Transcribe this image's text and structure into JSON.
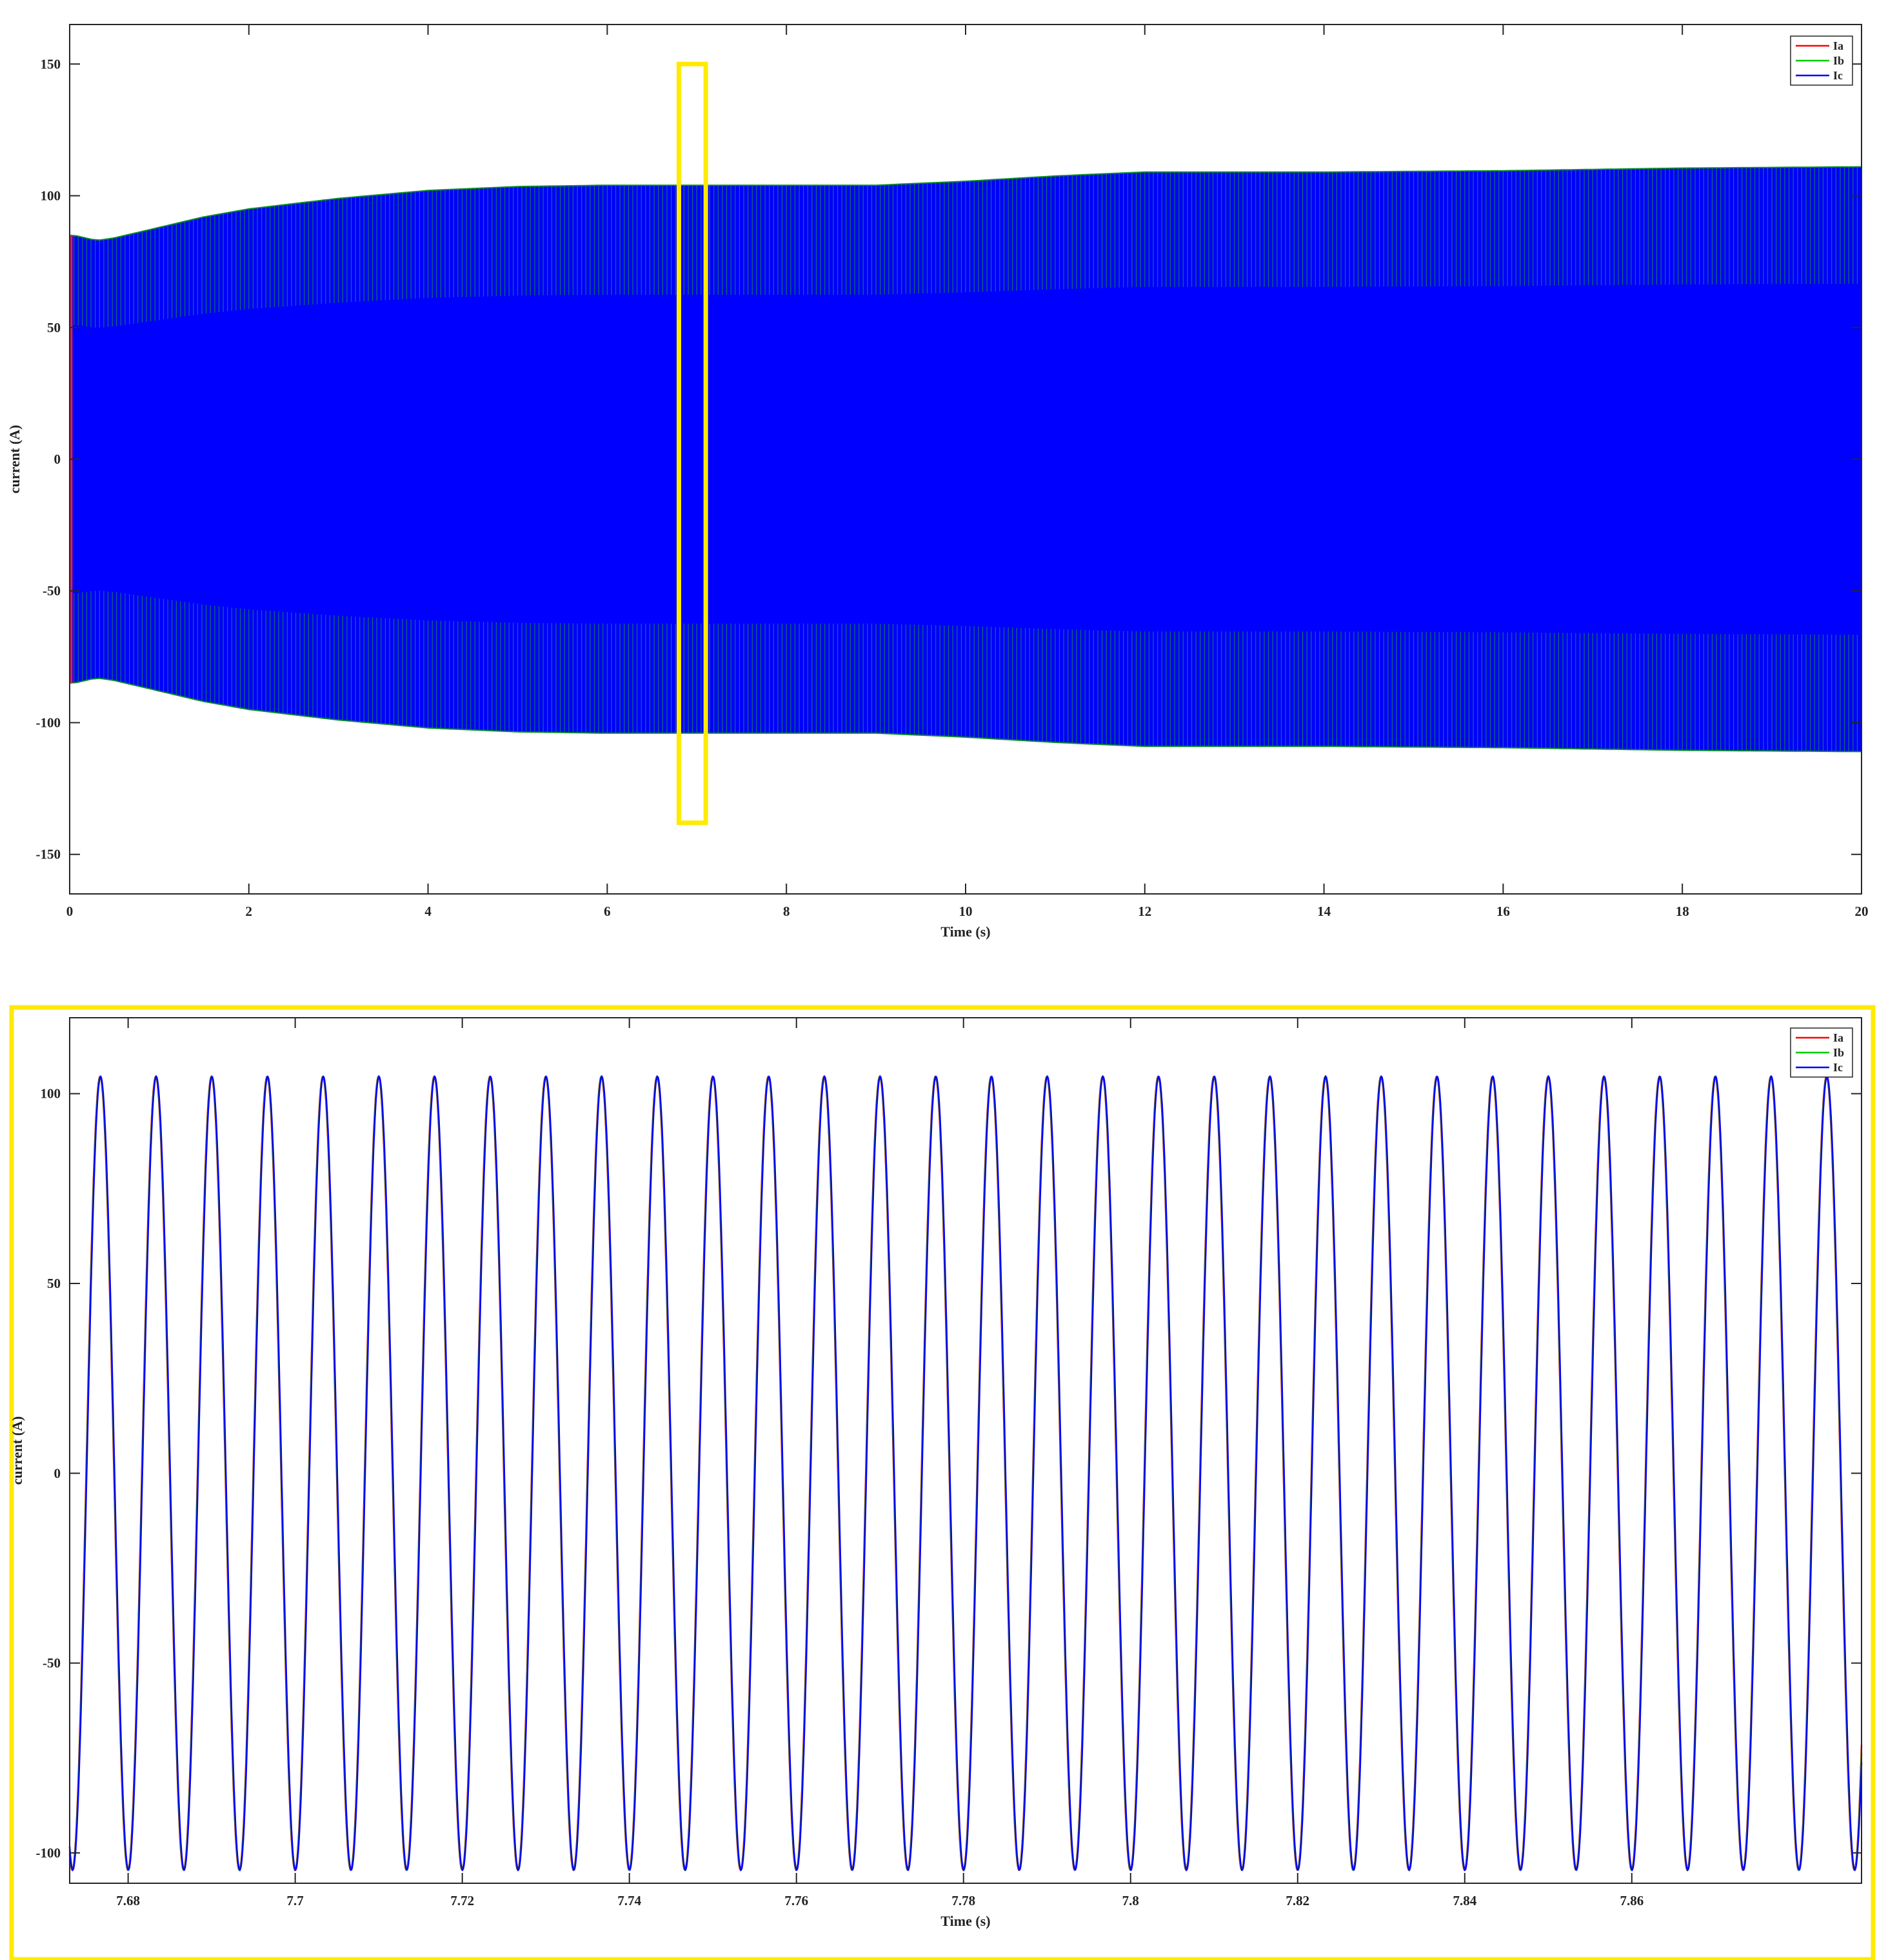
{
  "chart_data": [
    {
      "type": "line",
      "title": "",
      "xlabel": "Time (s)",
      "ylabel": "current (A)",
      "xlim": [
        0,
        20
      ],
      "ylim": [
        -165,
        165
      ],
      "xticks": [
        0,
        2,
        4,
        6,
        8,
        10,
        12,
        14,
        16,
        18,
        20
      ],
      "yticks": [
        -150,
        -100,
        -50,
        0,
        50,
        100,
        150
      ],
      "xtick_labels": [
        "0",
        "2",
        "4",
        "6",
        "8",
        "10",
        "12",
        "14",
        "16",
        "18",
        "20"
      ],
      "ytick_labels": [
        "-150",
        "-100",
        "-50",
        "0",
        "50",
        "100",
        "150"
      ],
      "grid": false,
      "legend_position": "top-right",
      "series": [
        {
          "name": "Ia",
          "color": "#ff0000"
        },
        {
          "name": "Ib",
          "color": "#00cc00"
        },
        {
          "name": "Ic",
          "color": "#0000ff"
        }
      ],
      "envelope": {
        "t": [
          0,
          0.05,
          0.3,
          0.5,
          1,
          1.5,
          2,
          3,
          4,
          5,
          6,
          7,
          8,
          9,
          10,
          11,
          12,
          13,
          14,
          16,
          18,
          20
        ],
        "amplitude": [
          85,
          85,
          83,
          84,
          88,
          92,
          95,
          99,
          102,
          103.5,
          104,
          104,
          104,
          104,
          105.5,
          107.5,
          109,
          109,
          109,
          109.5,
          110.5,
          111
        ]
      },
      "highlight_box": {
        "x": [
          6.8,
          7.1
        ],
        "y": [
          -138,
          150
        ],
        "color": "#ffea00"
      }
    },
    {
      "type": "line",
      "title": "",
      "xlabel": "Time (s)",
      "ylabel": "current (A)",
      "xlim": [
        7.673,
        7.8875
      ],
      "ylim": [
        -108,
        120
      ],
      "xticks": [
        7.68,
        7.7,
        7.72,
        7.74,
        7.76,
        7.78,
        7.8,
        7.82,
        7.84,
        7.86
      ],
      "yticks": [
        -100,
        -50,
        0,
        50,
        100
      ],
      "xtick_labels": [
        "7.68",
        "7.7",
        "7.72",
        "7.74",
        "7.76",
        "7.78",
        "7.8",
        "7.82",
        "7.84",
        "7.86"
      ],
      "ytick_labels": [
        "-100",
        "-50",
        "0",
        "50",
        "100"
      ],
      "grid": false,
      "legend_position": "top-right",
      "frequency_hz": 150,
      "amplitude": 104.5,
      "series": [
        {
          "name": "Ia",
          "color": "#ff0000",
          "peak_time": 7.6833
        },
        {
          "name": "Ib",
          "color": "#00cc00",
          "peak_time": 7.69
        },
        {
          "name": "Ic",
          "color": "#0000ff",
          "peak_time": 7.6767
        }
      ],
      "frame_color": "#ffea00"
    }
  ]
}
